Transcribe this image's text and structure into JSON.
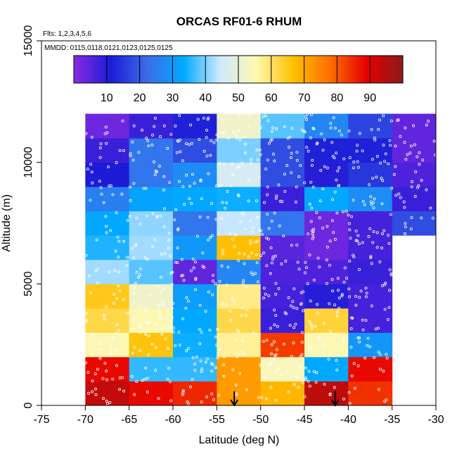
{
  "chart_data": {
    "type": "heatmap",
    "title": "ORCAS RF01-6 RHUM",
    "flights_note": "Flts: 1,2,3,4,5,6",
    "dates_note": "MMDD: 0115,0118,0121,0123,0125,0125",
    "xlabel": "Latitude (deg N)",
    "ylabel": "Altitude (m)",
    "xlim": [
      -75,
      -30
    ],
    "ylim": [
      0,
      15000
    ],
    "x_ticks": [
      -75,
      -70,
      -65,
      -60,
      -55,
      -50,
      -45,
      -40,
      -35,
      -30
    ],
    "x_tick_labels": [
      "-75",
      "-70",
      "-65",
      "-60",
      "-55",
      "-50",
      "-45",
      "-40",
      "-35",
      "-30"
    ],
    "y_ticks": [
      0,
      5000,
      10000,
      15000
    ],
    "y_tick_labels": [
      "0",
      "5000",
      "10000",
      "15000"
    ],
    "grid": false,
    "colorbar": {
      "range": [
        0,
        100
      ],
      "ticks": [
        10,
        20,
        30,
        40,
        50,
        60,
        70,
        80,
        90
      ],
      "tick_labels": [
        "10",
        "20",
        "30",
        "40",
        "50",
        "60",
        "70",
        "80",
        "90"
      ],
      "colors": [
        "#8a2be2",
        "#1b1bd6",
        "#3d6be8",
        "#00aaff",
        "#cfe9ff",
        "#fff8b0",
        "#ffc000",
        "#ff7000",
        "#e60000",
        "#8b1a1a"
      ]
    },
    "bin_edges_lat": [
      -70,
      -65,
      -60,
      -55,
      -50,
      -45,
      -40,
      -35,
      -30
    ],
    "bin_edges_alt": [
      0,
      1000,
      2000,
      3000,
      4000,
      5000,
      6000,
      7000,
      8000,
      9000,
      10000,
      11000,
      12000
    ],
    "cells": [
      [
        93,
        88,
        85,
        72,
        68,
        94,
        84,
        null
      ],
      [
        88,
        36,
        36,
        72,
        54,
        33,
        88,
        null
      ],
      [
        55,
        66,
        34,
        57,
        83,
        55,
        30,
        null
      ],
      [
        62,
        55,
        33,
        62,
        8,
        63,
        7,
        null
      ],
      [
        65,
        52,
        31,
        58,
        7,
        10,
        7,
        null
      ],
      [
        42,
        38,
        4,
        27,
        6,
        6,
        8,
        null
      ],
      [
        35,
        42,
        30,
        67,
        5,
        3,
        7,
        null
      ],
      [
        33,
        41,
        24,
        44,
        24,
        3,
        7,
        18
      ],
      [
        26,
        32,
        33,
        34,
        8,
        33,
        28,
        8
      ],
      [
        11,
        24,
        28,
        46,
        18,
        10,
        15,
        6
      ],
      [
        8,
        24,
        18,
        40,
        18,
        12,
        12,
        4
      ],
      [
        3,
        8,
        12,
        52,
        38,
        27,
        17,
        4
      ]
    ],
    "arrows_lat": [
      -53,
      -41.5
    ]
  }
}
